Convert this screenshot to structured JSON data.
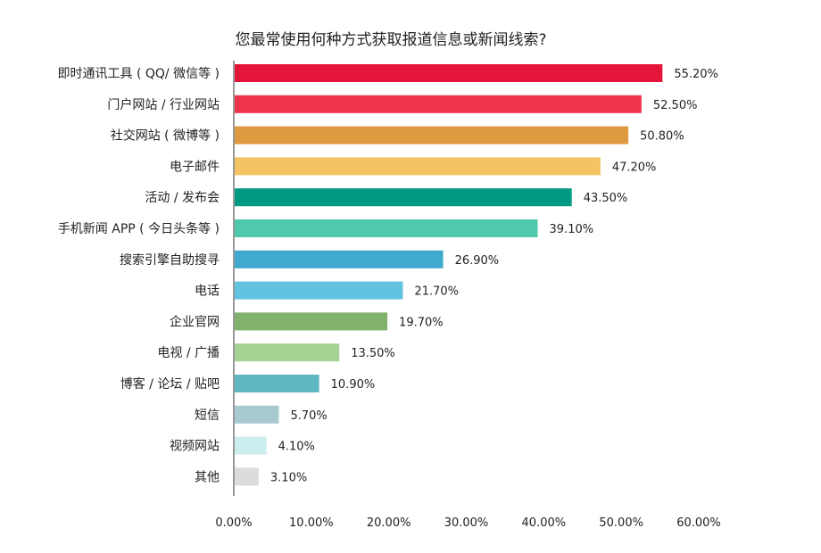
{
  "chart_data": {
    "type": "bar",
    "orientation": "horizontal",
    "title": "您最常使用何种方式获取报道信息或新闻线索?",
    "xlabel": "",
    "ylabel": "",
    "xlim": [
      0,
      60
    ],
    "x_ticks": [
      "0.00%",
      "10.00%",
      "20.00%",
      "30.00%",
      "40.00%",
      "50.00%",
      "60.00%"
    ],
    "grid": false,
    "categories": [
      "即时通讯工具 ( QQ/ 微信等 )",
      "门户网站 / 行业网站",
      "社交网站 ( 微博等 )",
      "电子邮件",
      "活动 / 发布会",
      "手机新闻 APP ( 今日头条等 )",
      "搜索引擎自助搜寻",
      "电话",
      "企业官网",
      "电视 / 广播",
      "博客 / 论坛 / 贴吧",
      "短信",
      "视频网站",
      "其他"
    ],
    "values": [
      55.2,
      52.5,
      50.8,
      47.2,
      43.5,
      39.1,
      26.9,
      21.7,
      19.7,
      13.5,
      10.9,
      5.7,
      4.1,
      3.1
    ],
    "value_labels": [
      "55.20%",
      "52.50%",
      "50.80%",
      "47.20%",
      "43.50%",
      "39.10%",
      "26.90%",
      "21.70%",
      "19.70%",
      "13.50%",
      "10.90%",
      "5.70%",
      "4.10%",
      "3.10%"
    ],
    "colors": [
      "#e4153a",
      "#f0324a",
      "#dd9a3e",
      "#f5c462",
      "#009a83",
      "#4fc9ac",
      "#3fa9cf",
      "#61c3e0",
      "#80b26c",
      "#a6d393",
      "#5fb7c2",
      "#a9c9d0",
      "#cdeeee",
      "#dcdcdc"
    ]
  }
}
